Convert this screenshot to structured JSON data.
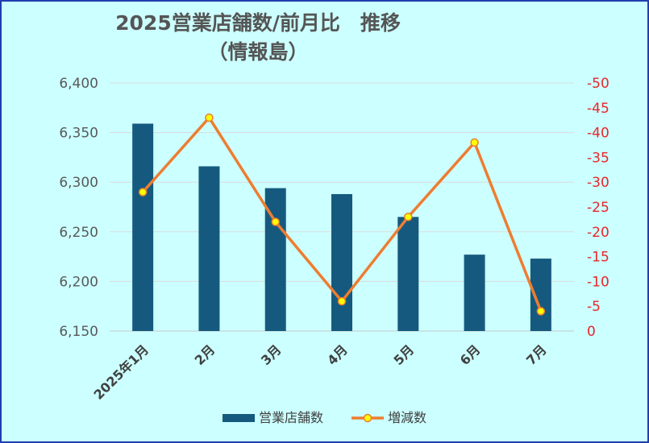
{
  "chart_data": {
    "type": "bar",
    "title": "2025営業店舗数/前月比　推移",
    "subtitle": "（情報島）",
    "categories": [
      "2025年1月",
      "2月",
      "3月",
      "4月",
      "5月",
      "6月",
      "7月"
    ],
    "series": [
      {
        "name": "営業店舗数",
        "type": "bar",
        "axis": "left",
        "color": "#155a7e",
        "values": [
          6359,
          6316,
          6294,
          6288,
          6265,
          6227,
          6223
        ]
      },
      {
        "name": "増減数",
        "type": "line",
        "axis": "right",
        "color": "#ed7d31",
        "marker_color": "#ffff00",
        "values": [
          -28,
          -43,
          -22,
          -6,
          -23,
          -38,
          -4
        ]
      }
    ],
    "left_axis": {
      "ylim": [
        6150,
        6400
      ],
      "ticks": [
        "6,150",
        "6,200",
        "6,250",
        "6,300",
        "6,350",
        "6,400"
      ]
    },
    "right_axis": {
      "ylim": [
        0,
        -50
      ],
      "ticks": [
        "0",
        "-5",
        "-10",
        "-15",
        "-20",
        "-25",
        "-30",
        "-35",
        "-40",
        "-45",
        "-50"
      ],
      "reversed": true
    },
    "grid": true,
    "legend_position": "bottom"
  }
}
